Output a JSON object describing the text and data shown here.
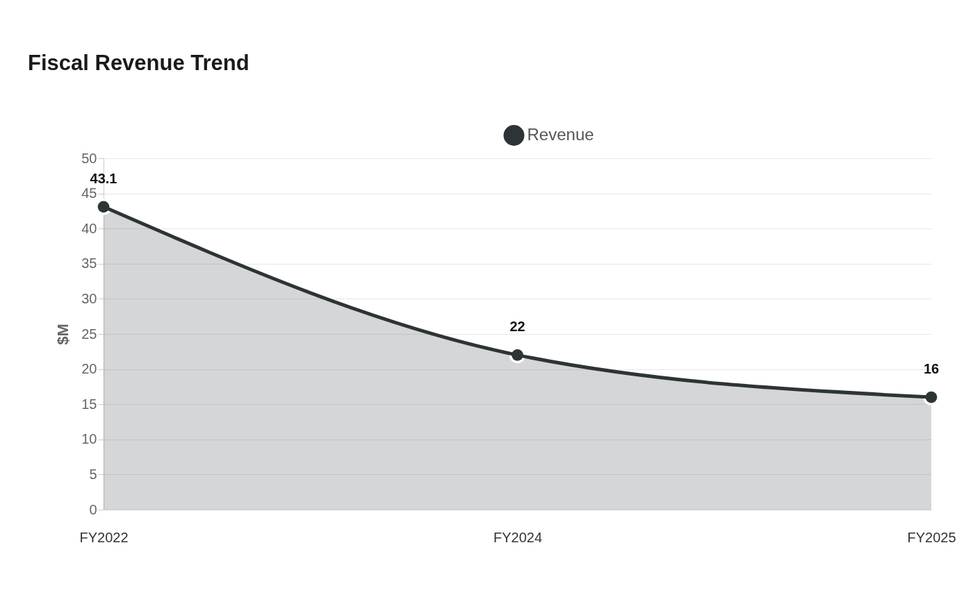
{
  "chart_data": {
    "type": "area",
    "title": "Fiscal Revenue Trend",
    "ylabel": "$M",
    "categories": [
      "FY2022",
      "FY2024",
      "FY2025"
    ],
    "series": [
      {
        "name": "Revenue",
        "color": "#2d3436",
        "values": [
          43.1,
          22,
          16
        ]
      }
    ],
    "ylim": [
      0,
      50
    ],
    "yticks": [
      0,
      5,
      10,
      15,
      20,
      25,
      30,
      35,
      40,
      45,
      50
    ],
    "grid": "y",
    "legend": "top",
    "marker": "circle",
    "data_labels": true
  }
}
